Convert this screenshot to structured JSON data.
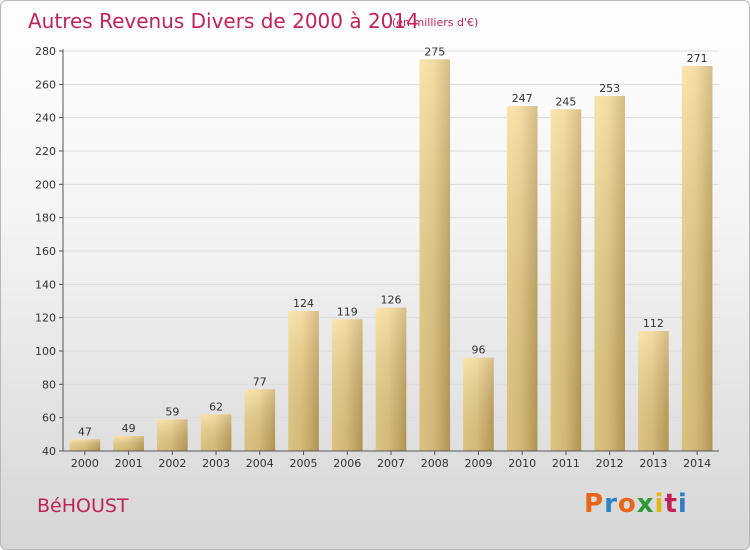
{
  "header": {
    "title": "Autres Revenus Divers de 2000 à 2014",
    "subtitle": "(en milliers d'€)"
  },
  "footer": {
    "commune": "BéHOUST",
    "logo_text": "Proxiti",
    "logo_colors": [
      "#e8651a",
      "#2e7fc4",
      "#e8651a",
      "#2e9a3c",
      "#e1b716",
      "#c0235a",
      "#2e7fc4"
    ]
  },
  "colors": {
    "bar_light": "#f9e4a0",
    "bar_mid": "#eccb7c",
    "bar_dark": "#c9a85f",
    "grid": "#dddddd",
    "axis": "#555555",
    "text": "#333333"
  },
  "chart_data": {
    "type": "bar",
    "title": "Autres Revenus Divers de 2000 à 2014",
    "subtitle": "(en milliers d'€)",
    "categories": [
      "2000",
      "2001",
      "2002",
      "2003",
      "2004",
      "2005",
      "2006",
      "2007",
      "2008",
      "2009",
      "2010",
      "2011",
      "2012",
      "2013",
      "2014"
    ],
    "values": [
      47,
      49,
      59,
      62,
      77,
      124,
      119,
      126,
      275,
      96,
      247,
      245,
      253,
      112,
      271
    ],
    "data_labels": [
      "47",
      "49",
      "59",
      "62",
      "77",
      "124",
      "119",
      "126",
      "275",
      "96",
      "247",
      "245",
      "253",
      "112",
      "271"
    ],
    "yticks": [
      "40",
      "60",
      "80",
      "100",
      "120",
      "140",
      "160",
      "180",
      "200",
      "220",
      "240",
      "260",
      "280"
    ],
    "ylim": [
      40,
      280
    ],
    "grid": true,
    "xlabel": "",
    "ylabel": ""
  }
}
